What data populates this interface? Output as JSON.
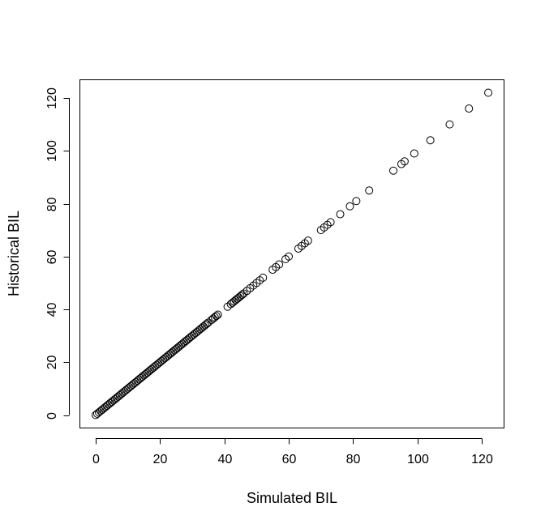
{
  "chart_data": {
    "type": "scatter",
    "title": "",
    "xlabel": "Simulated BIL",
    "ylabel": "Historical BIL",
    "xlim": [
      -4.9,
      126.9
    ],
    "ylim": [
      -4.9,
      126.9
    ],
    "xticks": [
      0,
      20,
      40,
      60,
      80,
      100,
      120
    ],
    "yticks": [
      0,
      20,
      40,
      60,
      80,
      100,
      120
    ],
    "grid": false,
    "legend": "none",
    "marker": "open-circle",
    "series": [
      {
        "x": [
          0,
          0.5,
          1,
          1.5,
          2,
          2.5,
          3,
          3.5,
          4,
          4.5,
          5,
          5.5,
          6,
          6.5,
          7,
          7.5,
          8,
          8.5,
          9,
          9.5,
          10,
          10.5,
          11,
          11.5,
          12,
          12.5,
          13,
          13.5,
          14,
          14.5,
          15,
          15.5,
          16,
          16.5,
          17,
          17.5,
          18,
          18.5,
          19,
          19.5,
          20,
          20.5,
          21,
          21.5,
          22,
          22.5,
          23,
          23.5,
          24,
          24.5,
          25,
          25.5,
          26,
          26.5,
          27,
          27.5,
          28,
          28.5,
          29,
          29.5,
          30,
          30.5,
          31,
          31.5,
          32,
          32.5,
          33,
          33.5,
          34,
          34.5,
          35,
          36,
          36.5,
          37,
          37.5,
          38,
          41,
          42,
          42.5,
          43,
          43.5,
          44,
          44.5,
          45,
          45.5,
          46,
          47,
          48,
          49,
          50,
          51,
          52,
          55,
          56,
          57,
          59,
          60,
          63,
          64,
          65,
          66,
          70,
          71,
          72,
          73,
          76,
          79,
          81,
          85,
          92.5,
          95,
          96,
          99,
          104,
          110,
          116,
          122
        ],
        "y": [
          0,
          0.5,
          1,
          1.5,
          2,
          2.5,
          3,
          3.5,
          4,
          4.5,
          5,
          5.5,
          6,
          6.5,
          7,
          7.5,
          8,
          8.5,
          9,
          9.5,
          10,
          10.5,
          11,
          11.5,
          12,
          12.5,
          13,
          13.5,
          14,
          14.5,
          15,
          15.5,
          16,
          16.5,
          17,
          17.5,
          18,
          18.5,
          19,
          19.5,
          20,
          20.5,
          21,
          21.5,
          22,
          22.5,
          23,
          23.5,
          24,
          24.5,
          25,
          25.5,
          26,
          26.5,
          27,
          27.5,
          28,
          28.5,
          29,
          29.5,
          30,
          30.5,
          31,
          31.5,
          32,
          32.5,
          33,
          33.5,
          34,
          34.5,
          35,
          36,
          36.5,
          37,
          37.5,
          38,
          41,
          42,
          42.5,
          43,
          43.5,
          44,
          44.5,
          45,
          45.5,
          46,
          47,
          48,
          49,
          50,
          51,
          52,
          55,
          56,
          57,
          59,
          60,
          63,
          64,
          65,
          66,
          70,
          71,
          72,
          73,
          76,
          79,
          81,
          85,
          92.5,
          95,
          96,
          99,
          104,
          110,
          116,
          122
        ]
      }
    ]
  }
}
